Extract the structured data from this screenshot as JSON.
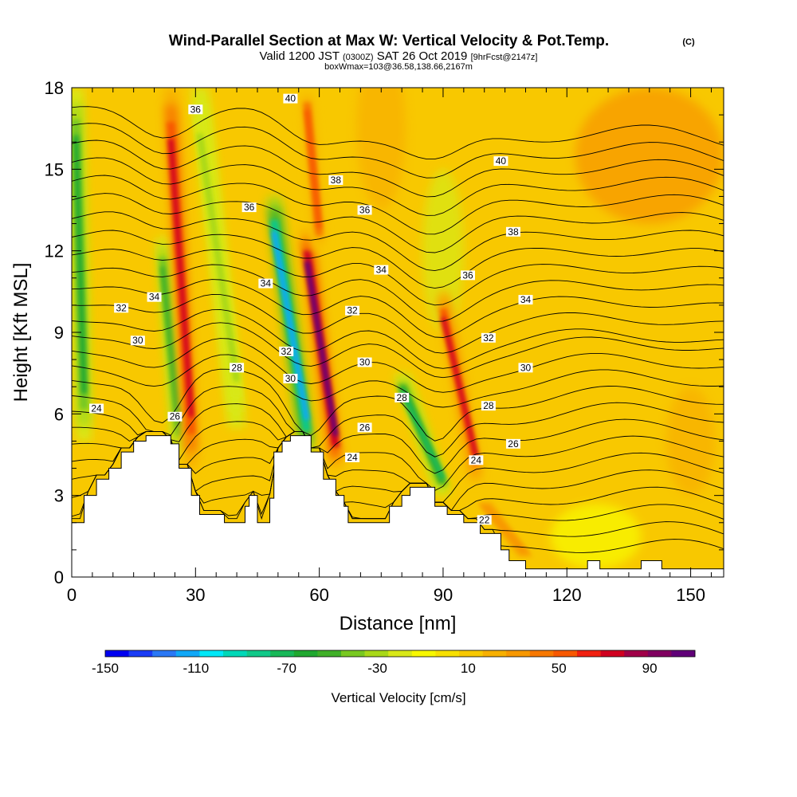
{
  "title": {
    "main": "Wind-Parallel Section at Max W: Vertical Velocity & Pot.Temp.",
    "copyright": "(C)",
    "valid_prefix": "Valid 1200 JST",
    "valid_utc": "(0300Z)",
    "valid_date": "SAT 26 Oct 2019",
    "forecast": "[9hrFcst@2147z]",
    "box_info": "boxWmax=103@36.58,138.66,2167m"
  },
  "chart_data": {
    "type": "heatmap",
    "xlabel": "Distance [nm]",
    "ylabel": "Height [Kft MSL]",
    "xlim": [
      0,
      158
    ],
    "ylim": [
      0,
      18
    ],
    "x_ticks": [
      "0",
      "30",
      "60",
      "90",
      "120",
      "150"
    ],
    "y_ticks": [
      "0",
      "3",
      "6",
      "9",
      "12",
      "15",
      "18"
    ],
    "x_tick_values": [
      0,
      30,
      60,
      90,
      120,
      150
    ],
    "y_tick_values": [
      0,
      3,
      6,
      9,
      12,
      15,
      18
    ],
    "colorbar": {
      "label": "Vertical Velocity [cm/s]",
      "tick_labels": [
        "-150",
        "-110",
        "-70",
        "-30",
        "10",
        "50",
        "90"
      ],
      "tick_values": [
        -150,
        -110,
        -70,
        -30,
        10,
        50,
        90
      ],
      "min": -150,
      "max": 110,
      "colors": [
        "#0000f0",
        "#1a3cf5",
        "#2a78f5",
        "#10a8f8",
        "#00e8f8",
        "#00d8b8",
        "#10c888",
        "#18b858",
        "#20a830",
        "#40b028",
        "#78c820",
        "#a8d818",
        "#d8e818",
        "#f8f800",
        "#f8e000",
        "#f8c800",
        "#f8b000",
        "#f89800",
        "#f87800",
        "#f85800",
        "#f02010",
        "#d00020",
        "#a00048",
        "#800060",
        "#600078"
      ]
    },
    "terrain_top_kft": [
      [
        0,
        2.0
      ],
      [
        3,
        2.0
      ],
      [
        3,
        3.0
      ],
      [
        6,
        3.0
      ],
      [
        6,
        3.6
      ],
      [
        9,
        3.6
      ],
      [
        9,
        4.0
      ],
      [
        12,
        4.0
      ],
      [
        12,
        4.6
      ],
      [
        15,
        4.6
      ],
      [
        15,
        5.0
      ],
      [
        18,
        5.0
      ],
      [
        18,
        5.2
      ],
      [
        24,
        5.2
      ],
      [
        24,
        4.9
      ],
      [
        26,
        4.9
      ],
      [
        26,
        4.0
      ],
      [
        29,
        4.0
      ],
      [
        29,
        3.0
      ],
      [
        31,
        3.0
      ],
      [
        31,
        2.3
      ],
      [
        37,
        2.3
      ],
      [
        37,
        2.0
      ],
      [
        42,
        2.0
      ],
      [
        42,
        2.6
      ],
      [
        43,
        2.6
      ],
      [
        43,
        3.0
      ],
      [
        45,
        3.0
      ],
      [
        45,
        2.0
      ],
      [
        48,
        2.0
      ],
      [
        48,
        2.9
      ],
      [
        49,
        2.9
      ],
      [
        49,
        4.6
      ],
      [
        51,
        4.6
      ],
      [
        51,
        5.0
      ],
      [
        53,
        5.0
      ],
      [
        53,
        5.2
      ],
      [
        58,
        5.2
      ],
      [
        58,
        4.6
      ],
      [
        61,
        4.6
      ],
      [
        61,
        3.6
      ],
      [
        64,
        3.6
      ],
      [
        64,
        3.0
      ],
      [
        66,
        3.0
      ],
      [
        66,
        2.6
      ],
      [
        67,
        2.6
      ],
      [
        67,
        2.0
      ],
      [
        77,
        2.0
      ],
      [
        77,
        2.6
      ],
      [
        80,
        2.6
      ],
      [
        80,
        3.0
      ],
      [
        82,
        3.0
      ],
      [
        82,
        3.3
      ],
      [
        88,
        3.3
      ],
      [
        88,
        2.6
      ],
      [
        91,
        2.6
      ],
      [
        91,
        2.3
      ],
      [
        95,
        2.3
      ],
      [
        95,
        2.0
      ],
      [
        99,
        2.0
      ],
      [
        99,
        1.6
      ],
      [
        104,
        1.6
      ],
      [
        104,
        1.0
      ],
      [
        106,
        1.0
      ],
      [
        106,
        0.6
      ],
      [
        110,
        0.6
      ],
      [
        110,
        0.3
      ],
      [
        125,
        0.3
      ],
      [
        125,
        0.6
      ],
      [
        128,
        0.6
      ],
      [
        128,
        0.3
      ],
      [
        138,
        0.3
      ],
      [
        138,
        0.6
      ],
      [
        143,
        0.6
      ],
      [
        143,
        0.3
      ],
      [
        158,
        0.3
      ]
    ],
    "velocity_bands": [
      {
        "x_bottom": 3,
        "x_top": 1,
        "y_bottom": 5,
        "y_top": 18,
        "width": 3.5,
        "w": -60
      },
      {
        "x_bottom": 26,
        "x_top": 22,
        "y_bottom": 4.5,
        "y_top": 12.5,
        "width": 3.0,
        "w": -55
      },
      {
        "x_bottom": 29,
        "x_top": 24,
        "y_bottom": 4.0,
        "y_top": 18,
        "width": 3.2,
        "w": 75
      },
      {
        "x_bottom": 40,
        "x_top": 31,
        "y_bottom": 5.5,
        "y_top": 18,
        "width": 4.0,
        "w": -30
      },
      {
        "x_bottom": 57,
        "x_top": 49,
        "y_bottom": 4.5,
        "y_top": 14,
        "width": 3.3,
        "w": -110
      },
      {
        "x_bottom": 64,
        "x_top": 57,
        "y_bottom": 4.0,
        "y_top": 12.8,
        "width": 3.0,
        "w": 103
      },
      {
        "x_bottom": 60,
        "x_top": 57,
        "y_bottom": 12.0,
        "y_top": 18,
        "width": 3.0,
        "w": 50
      },
      {
        "x_bottom": 90,
        "x_top": 80,
        "y_bottom": 3.0,
        "y_top": 7.5,
        "width": 3.5,
        "w": -70
      },
      {
        "x_bottom": 98,
        "x_top": 90,
        "y_bottom": 3.5,
        "y_top": 10.5,
        "width": 2.8,
        "w": 70
      },
      {
        "x_bottom": 110,
        "x_top": 100,
        "y_bottom": 0.5,
        "y_top": 3.0,
        "width": 6.0,
        "w": 30
      }
    ],
    "theta_contours": [
      {
        "label": "22",
        "label_x": 100,
        "label_y": 2.1
      },
      {
        "label": "24",
        "label_x": 6,
        "label_y": 6.2
      },
      {
        "label": "24",
        "label_x": 68,
        "label_y": 4.4
      },
      {
        "label": "24",
        "label_x": 98,
        "label_y": 4.3
      },
      {
        "label": "26",
        "label_x": 25,
        "label_y": 5.9
      },
      {
        "label": "26",
        "label_x": 71,
        "label_y": 5.5
      },
      {
        "label": "26",
        "label_x": 107,
        "label_y": 4.9
      },
      {
        "label": "28",
        "label_x": 40,
        "label_y": 7.7
      },
      {
        "label": "28",
        "label_x": 80,
        "label_y": 6.6
      },
      {
        "label": "28",
        "label_x": 101,
        "label_y": 6.3
      },
      {
        "label": "30",
        "label_x": 16,
        "label_y": 8.7
      },
      {
        "label": "30",
        "label_x": 53,
        "label_y": 7.3
      },
      {
        "label": "30",
        "label_x": 71,
        "label_y": 7.9
      },
      {
        "label": "30",
        "label_x": 110,
        "label_y": 7.7
      },
      {
        "label": "32",
        "label_x": 12,
        "label_y": 9.9
      },
      {
        "label": "32",
        "label_x": 52,
        "label_y": 8.3
      },
      {
        "label": "32",
        "label_x": 68,
        "label_y": 9.8
      },
      {
        "label": "32",
        "label_x": 101,
        "label_y": 8.8
      },
      {
        "label": "34",
        "label_x": 20,
        "label_y": 10.3
      },
      {
        "label": "34",
        "label_x": 47,
        "label_y": 10.8
      },
      {
        "label": "34",
        "label_x": 75,
        "label_y": 11.3
      },
      {
        "label": "34",
        "label_x": 110,
        "label_y": 10.2
      },
      {
        "label": "36",
        "label_x": 30,
        "label_y": 17.2
      },
      {
        "label": "36",
        "label_x": 43,
        "label_y": 13.6
      },
      {
        "label": "36",
        "label_x": 71,
        "label_y": 13.5
      },
      {
        "label": "36",
        "label_x": 96,
        "label_y": 11.1
      },
      {
        "label": "38",
        "label_x": 64,
        "label_y": 14.6
      },
      {
        "label": "38",
        "label_x": 107,
        "label_y": 12.7
      },
      {
        "label": "40",
        "label_x": 53,
        "label_y": 17.6
      },
      {
        "label": "40",
        "label_x": 104,
        "label_y": 15.3
      }
    ]
  }
}
